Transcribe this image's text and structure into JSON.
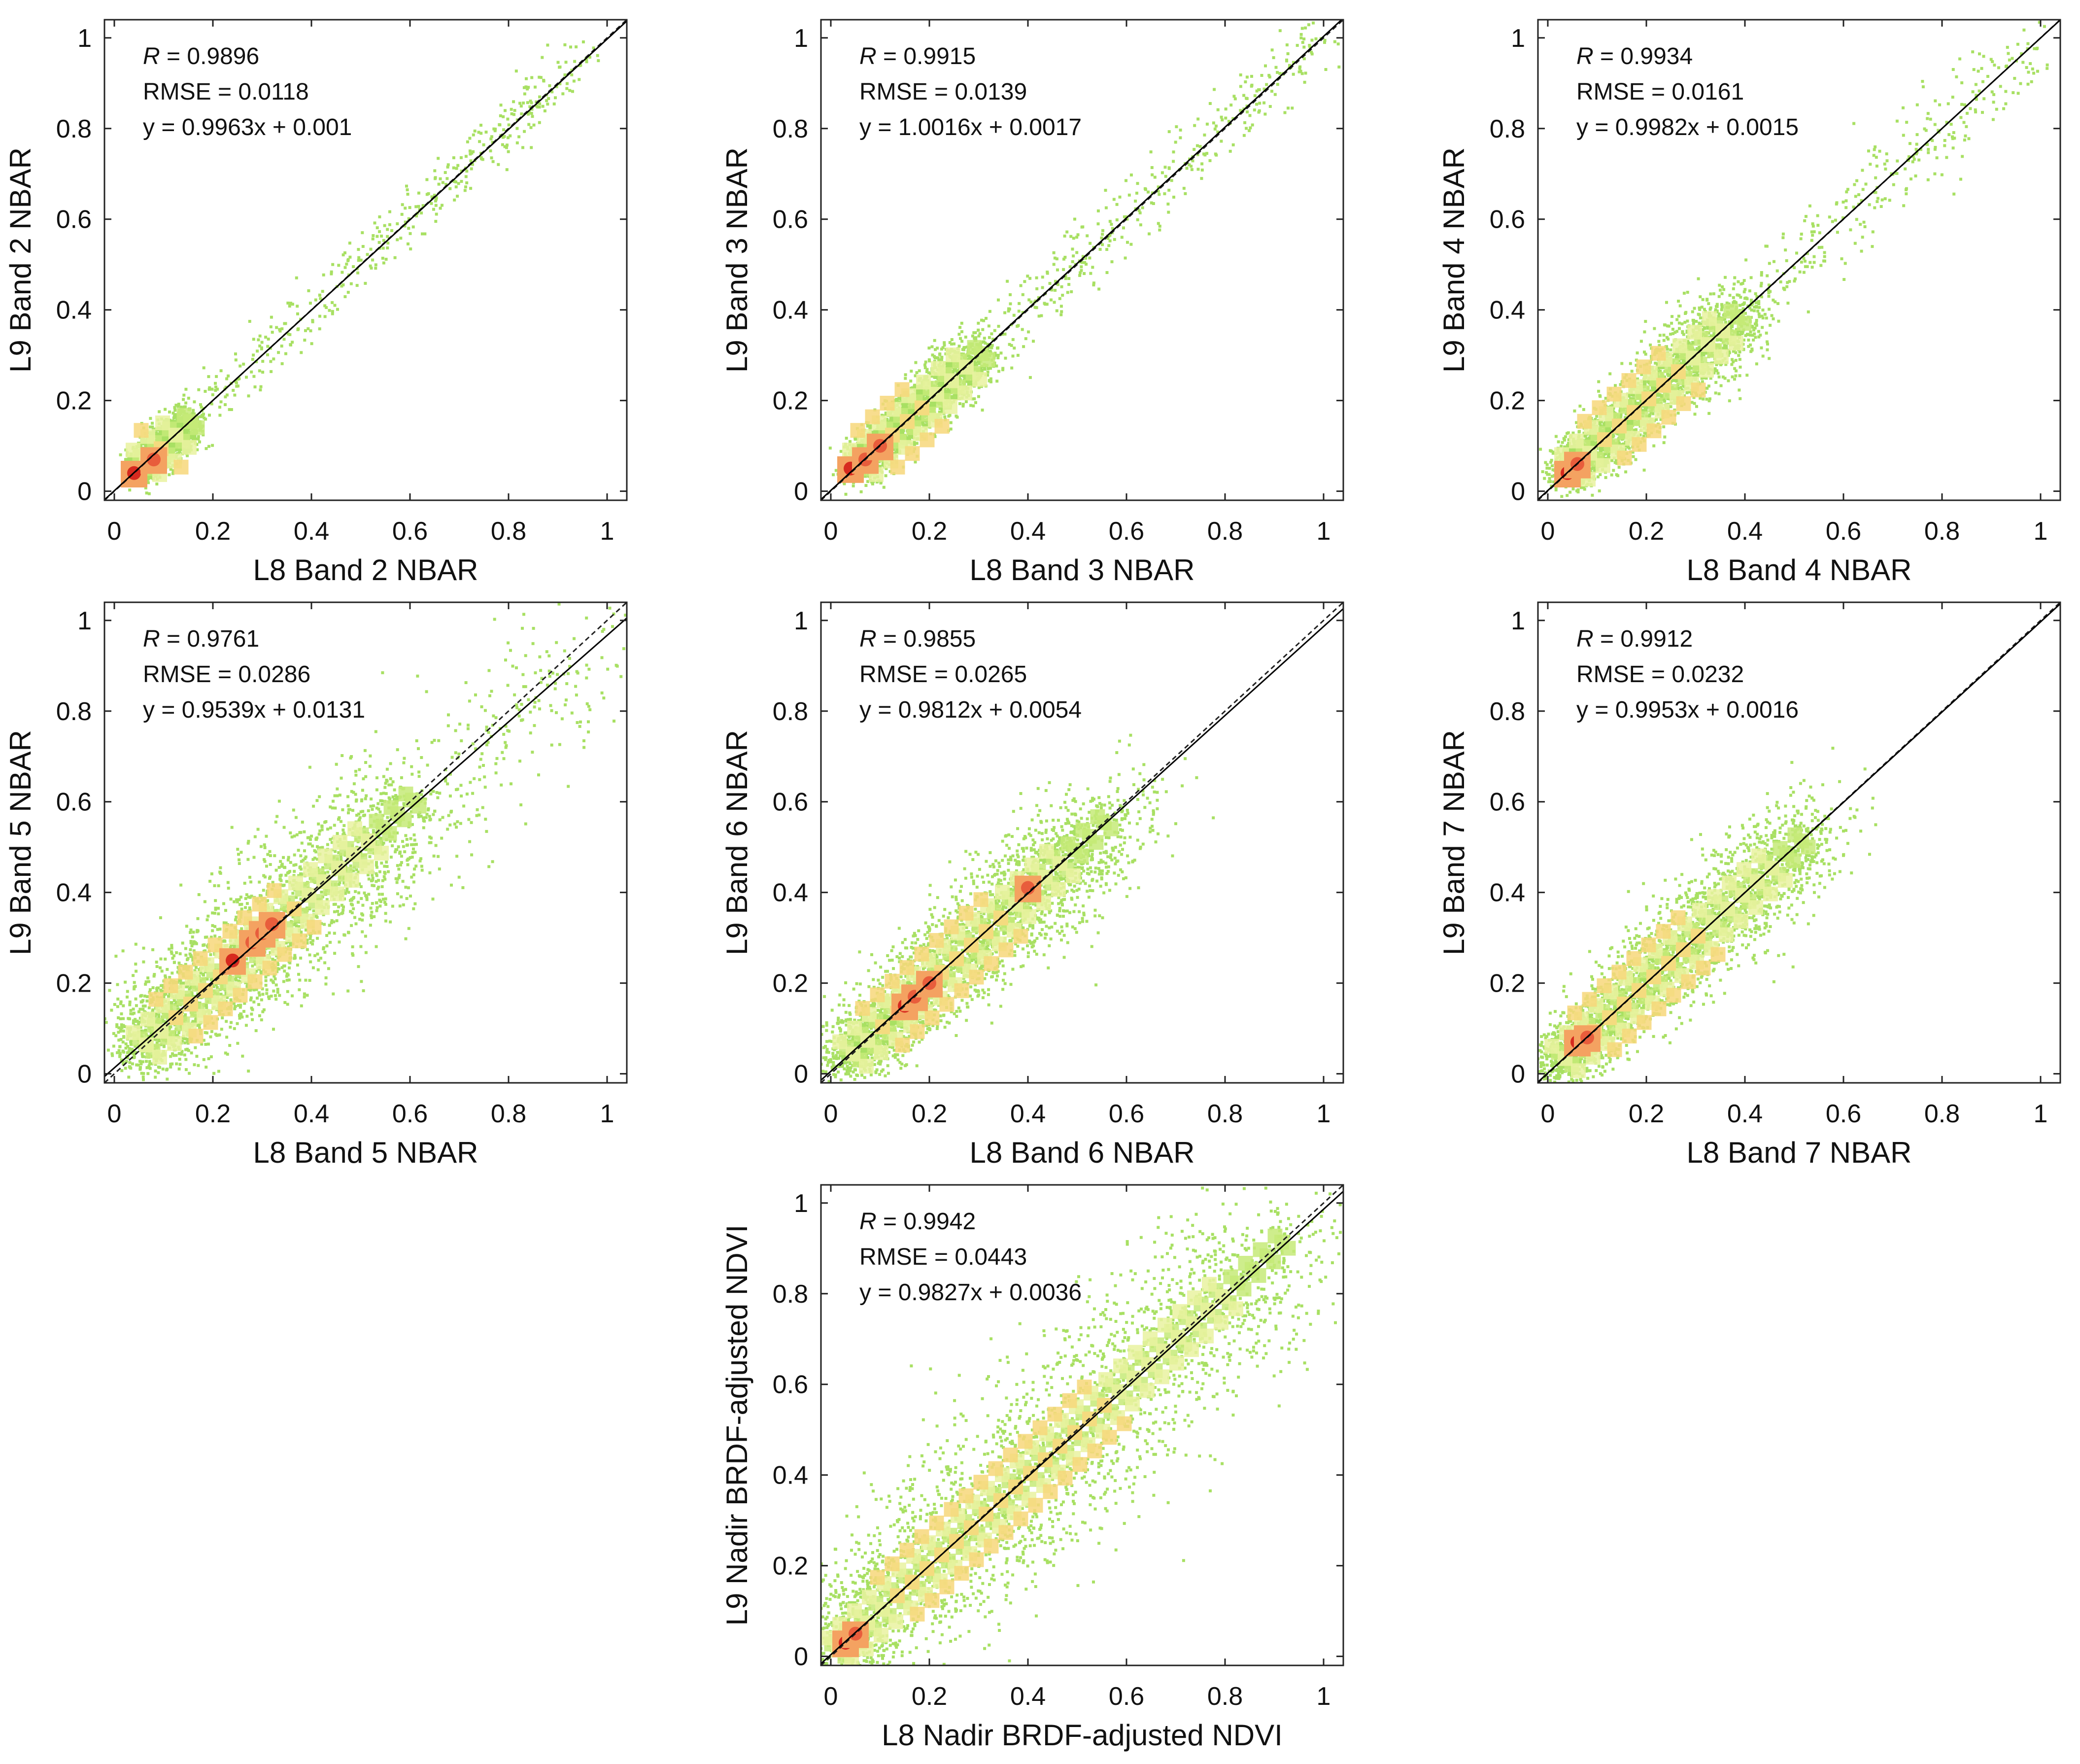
{
  "colors": {
    "background": "#ffffff",
    "axis": "#222222",
    "identity_line": "#222222",
    "fit_line": "#000000",
    "density_scale": [
      "#a8e063",
      "#c6ea78",
      "#e9f2a0",
      "#f7d77a",
      "#f4a261",
      "#e85d3c",
      "#d62a1f"
    ]
  },
  "chart_data": [
    {
      "type": "scatter",
      "xlabel": "L8 Band 2 NBAR",
      "ylabel": "L9 Band 2 NBAR",
      "xlim": [
        -0.02,
        1.04
      ],
      "ylim": [
        -0.02,
        1.04
      ],
      "xticks": [
        "0",
        "0.2",
        "0.4",
        "0.6",
        "0.8",
        "1"
      ],
      "yticks": [
        "0",
        "0.2",
        "0.4",
        "0.6",
        "0.8",
        "1"
      ],
      "stats": {
        "r_symbol": "R",
        "r_value": " = 0.9896",
        "rmse": "RMSE = 0.0118",
        "equation": "y = 0.9963x + 0.001"
      },
      "fit": {
        "slope": 0.9963,
        "intercept": 0.001
      },
      "distribution": {
        "core": [
          0.05,
          0.15
        ],
        "spread": 0.025,
        "tail_max": 0.95,
        "hot_spots": [
          [
            0.04,
            0.04
          ],
          [
            0.08,
            0.07
          ]
        ]
      }
    },
    {
      "type": "scatter",
      "xlabel": "L8 Band 3 NBAR",
      "ylabel": "L9 Band 3 NBAR",
      "xlim": [
        -0.02,
        1.04
      ],
      "ylim": [
        -0.02,
        1.04
      ],
      "xticks": [
        "0",
        "0.2",
        "0.4",
        "0.6",
        "0.8",
        "1"
      ],
      "yticks": [
        "0",
        "0.2",
        "0.4",
        "0.6",
        "0.8",
        "1"
      ],
      "stats": {
        "r_symbol": "R",
        "r_value": " = 0.9915",
        "rmse": "RMSE = 0.0139",
        "equation": "y = 1.0016x + 0.0017"
      },
      "fit": {
        "slope": 1.0016,
        "intercept": 0.0017
      },
      "distribution": {
        "core": [
          0.05,
          0.3
        ],
        "spread": 0.03,
        "tail_max": 1.0,
        "hot_spots": [
          [
            0.04,
            0.05
          ],
          [
            0.07,
            0.07
          ],
          [
            0.1,
            0.1
          ]
        ]
      }
    },
    {
      "type": "scatter",
      "xlabel": "L8 Band 4 NBAR",
      "ylabel": "L9 Band 4 NBAR",
      "xlim": [
        -0.02,
        1.04
      ],
      "ylim": [
        -0.02,
        1.04
      ],
      "xticks": [
        "0",
        "0.2",
        "0.4",
        "0.6",
        "0.8",
        "1"
      ],
      "yticks": [
        "0",
        "0.2",
        "0.4",
        "0.6",
        "0.8",
        "1"
      ],
      "stats": {
        "r_symbol": "R",
        "r_value": " = 0.9934",
        "rmse": "RMSE = 0.0161",
        "equation": "y = 0.9982x + 0.0015"
      },
      "fit": {
        "slope": 0.9982,
        "intercept": 0.0015
      },
      "distribution": {
        "core": [
          0.04,
          0.4
        ],
        "spread": 0.04,
        "tail_max": 1.0,
        "hot_spots": [
          [
            0.04,
            0.04
          ],
          [
            0.06,
            0.06
          ]
        ]
      }
    },
    {
      "type": "scatter",
      "xlabel": "L8 Band 5 NBAR",
      "ylabel": "L9 Band 5 NBAR",
      "xlim": [
        -0.02,
        1.04
      ],
      "ylim": [
        -0.02,
        1.04
      ],
      "xticks": [
        "0",
        "0.2",
        "0.4",
        "0.6",
        "0.8",
        "1"
      ],
      "yticks": [
        "0",
        "0.2",
        "0.4",
        "0.6",
        "0.8",
        "1"
      ],
      "stats": {
        "r_symbol": "R",
        "r_value": " = 0.9761",
        "rmse": "RMSE = 0.0286",
        "equation": "y = 0.9539x + 0.0131"
      },
      "fit": {
        "slope": 0.9539,
        "intercept": 0.0131
      },
      "distribution": {
        "core": [
          0.05,
          0.6
        ],
        "spread": 0.07,
        "tail_max": 1.0,
        "hot_spots": [
          [
            0.24,
            0.25
          ],
          [
            0.28,
            0.29
          ],
          [
            0.3,
            0.31
          ],
          [
            0.32,
            0.33
          ]
        ]
      }
    },
    {
      "type": "scatter",
      "xlabel": "L8 Band 6 NBAR",
      "ylabel": "L9 Band 6 NBAR",
      "xlim": [
        -0.02,
        1.04
      ],
      "ylim": [
        -0.02,
        1.04
      ],
      "xticks": [
        "0",
        "0.2",
        "0.4",
        "0.6",
        "0.8",
        "1"
      ],
      "yticks": [
        "0",
        "0.2",
        "0.4",
        "0.6",
        "0.8",
        "1"
      ],
      "stats": {
        "r_symbol": "R",
        "r_value": " = 0.9855",
        "rmse": "RMSE = 0.0265",
        "equation": "y = 0.9812x + 0.0054"
      },
      "fit": {
        "slope": 0.9812,
        "intercept": 0.0054
      },
      "distribution": {
        "core": [
          0.03,
          0.55
        ],
        "spread": 0.055,
        "tail_max": 0.65,
        "hot_spots": [
          [
            0.15,
            0.15
          ],
          [
            0.17,
            0.17
          ],
          [
            0.2,
            0.2
          ],
          [
            0.4,
            0.41
          ]
        ]
      }
    },
    {
      "type": "scatter",
      "xlabel": "L8 Band 7 NBAR",
      "ylabel": "L9 Band 7 NBAR",
      "xlim": [
        -0.02,
        1.04
      ],
      "ylim": [
        -0.02,
        1.04
      ],
      "xticks": [
        "0",
        "0.2",
        "0.4",
        "0.6",
        "0.8",
        "1"
      ],
      "yticks": [
        "0",
        "0.2",
        "0.4",
        "0.6",
        "0.8",
        "1"
      ],
      "stats": {
        "r_symbol": "R",
        "r_value": " = 0.9912",
        "rmse": "RMSE = 0.0232",
        "equation": "y = 0.9953x + 0.0016"
      },
      "fit": {
        "slope": 0.9953,
        "intercept": 0.0016
      },
      "distribution": {
        "core": [
          0.02,
          0.52
        ],
        "spread": 0.05,
        "tail_max": 0.58,
        "hot_spots": [
          [
            0.06,
            0.07
          ],
          [
            0.08,
            0.08
          ]
        ]
      }
    },
    {
      "type": "scatter",
      "xlabel": "L8 Nadir BRDF-adjusted NDVI",
      "ylabel": "L9 Nadir BRDF-adjusted NDVI",
      "xlim": [
        -0.02,
        1.04
      ],
      "ylim": [
        -0.02,
        1.04
      ],
      "xticks": [
        "0",
        "0.2",
        "0.4",
        "0.6",
        "0.8",
        "1"
      ],
      "yticks": [
        "0",
        "0.2",
        "0.4",
        "0.6",
        "0.8",
        "1"
      ],
      "stats": {
        "r_symbol": "R",
        "r_value": " = 0.9942",
        "rmse": "RMSE = 0.0443",
        "equation": "y = 0.9827x + 0.0036"
      },
      "fit": {
        "slope": 0.9827,
        "intercept": 0.0036
      },
      "distribution": {
        "core": [
          0.0,
          0.93
        ],
        "spread": 0.09,
        "tail_max": 0.94,
        "hot_spots": [
          [
            0.03,
            0.03
          ],
          [
            0.05,
            0.05
          ]
        ]
      }
    }
  ]
}
